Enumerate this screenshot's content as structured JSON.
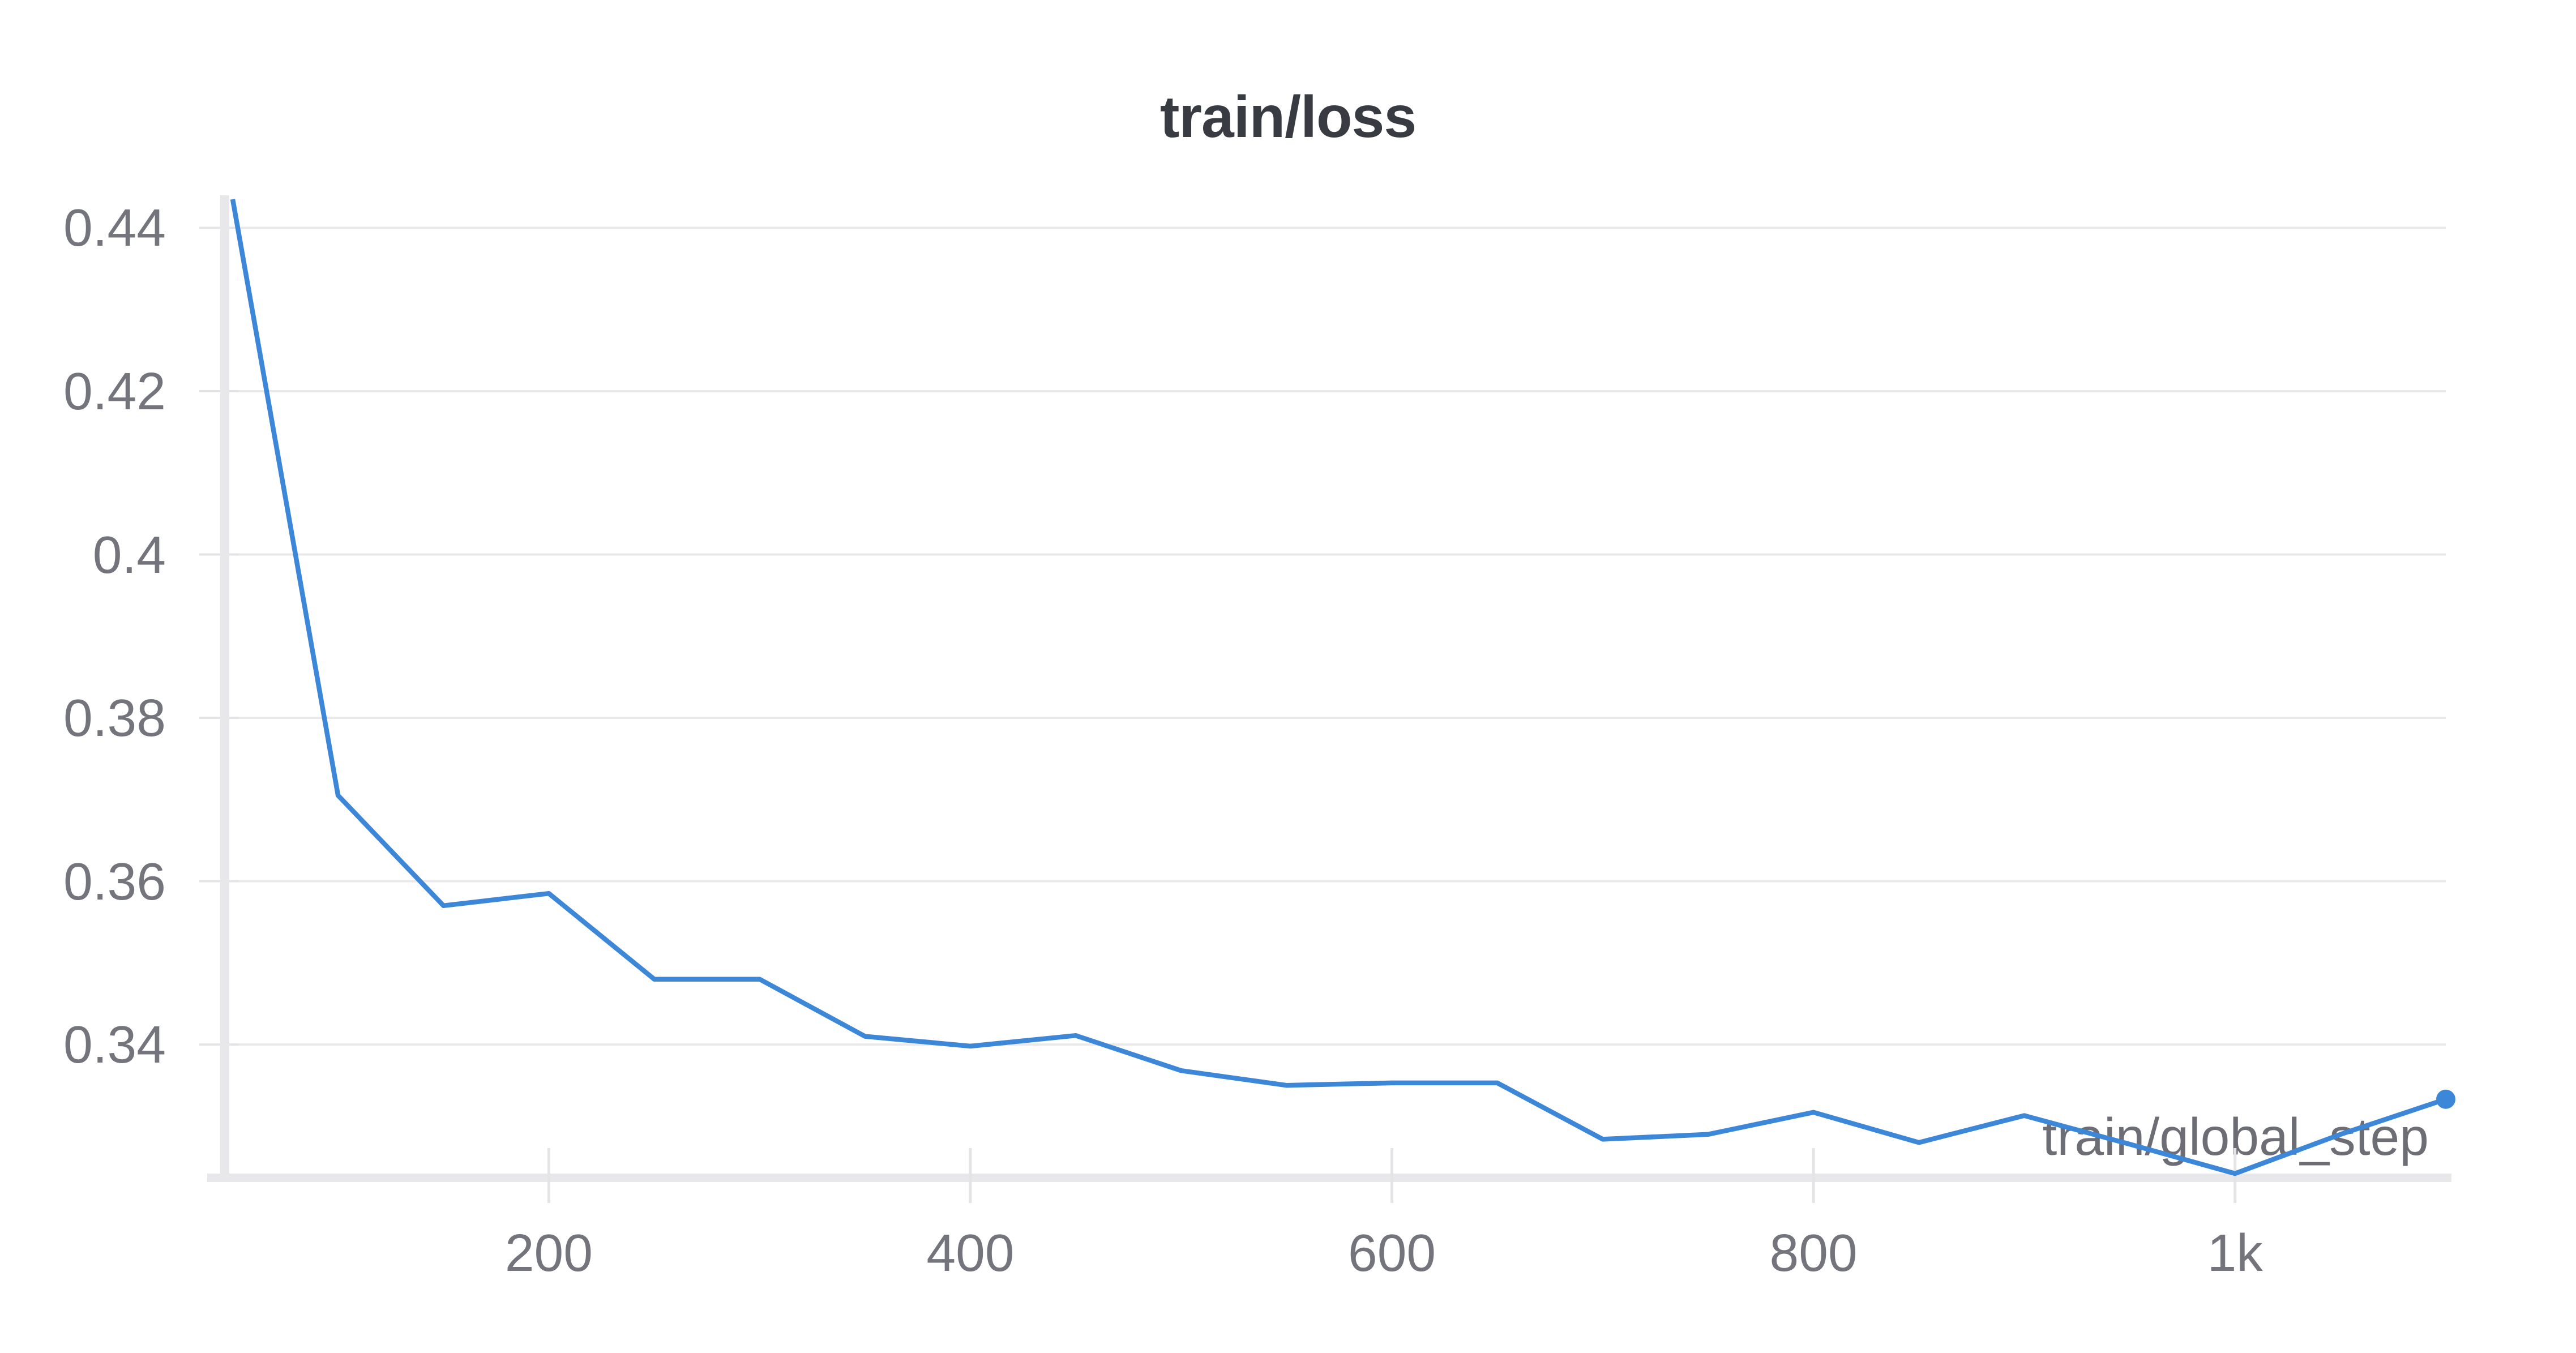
{
  "chart_data": {
    "type": "line",
    "title": "train/loss",
    "xlabel": "train/global_step",
    "ylabel": "",
    "legend": "none",
    "grid": "horizontal",
    "x_domain": [
      50,
      1100
    ],
    "y_domain": [
      0.3242,
      0.4435
    ],
    "series": [
      {
        "name": "train/loss",
        "x": [
          50,
          100,
          150,
          200,
          250,
          300,
          350,
          400,
          450,
          500,
          550,
          600,
          650,
          700,
          750,
          800,
          850,
          900,
          950,
          1000,
          1050,
          1100
        ],
        "y": [
          0.4435,
          0.3705,
          0.357,
          0.3585,
          0.348,
          0.348,
          0.341,
          0.3398,
          0.3411,
          0.3368,
          0.335,
          0.3353,
          0.3353,
          0.3284,
          0.329,
          0.3317,
          0.328,
          0.3313,
          0.3278,
          0.3242,
          0.329,
          0.3333
        ]
      }
    ],
    "x_ticks": [
      {
        "value": 200,
        "label": "200"
      },
      {
        "value": 400,
        "label": "400"
      },
      {
        "value": 600,
        "label": "600"
      },
      {
        "value": 800,
        "label": "800"
      },
      {
        "value": 1000,
        "label": "1k"
      }
    ],
    "y_ticks": [
      {
        "value": 0.34,
        "label": "0.34"
      },
      {
        "value": 0.36,
        "label": "0.36"
      },
      {
        "value": 0.38,
        "label": "0.38"
      },
      {
        "value": 0.4,
        "label": "0.4"
      },
      {
        "value": 0.42,
        "label": "0.42"
      },
      {
        "value": 0.44,
        "label": "0.44"
      }
    ],
    "endpoint_dot": true,
    "line_color": "#3d87d8"
  },
  "colors": {
    "line": "#3d87d8",
    "title_text": "#383b41",
    "tick_text": "#74747d",
    "axis_label_text": "#6d6d76",
    "gridline": "#e9e9eb",
    "axis_band": "#e8e8ea",
    "tick_stub": "#e4e4e7",
    "background": "#ffffff"
  }
}
